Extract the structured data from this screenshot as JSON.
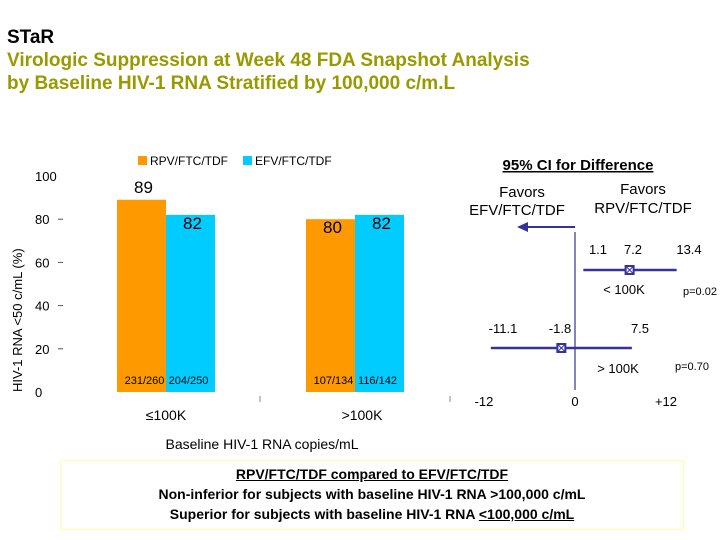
{
  "header": {
    "study": "STaR",
    "title_line2": "Virologic Suppression at Week 48 FDA Snapshot Analysis",
    "title_line3": "by Baseline HIV-1 RNA Stratified by 100,000 c/m.L"
  },
  "colors": {
    "rpv": "#FF9900",
    "efv": "#00CCFF",
    "ci": "#333399",
    "title_accent": "#999900"
  },
  "chart_data": [
    {
      "type": "bar",
      "title": "",
      "xlabel": "Baseline HIV-1 RNA copies/mL",
      "ylabel": "HIV-1 RNA <50 c/mL (%)",
      "ylim": [
        0,
        100
      ],
      "yticks": [
        "0",
        "20",
        "40",
        "60",
        "80",
        "100"
      ],
      "categories": [
        "≤100K",
        ">100K"
      ],
      "legend": [
        "RPV/FTC/TDF",
        "EFV/FTC/TDF"
      ],
      "series": [
        {
          "name": "RPV/FTC/TDF",
          "values": [
            89,
            80
          ],
          "n_labels": [
            "231/260",
            "107/134"
          ]
        },
        {
          "name": "EFV/FTC/TDF",
          "values": [
            82,
            82
          ],
          "n_labels": [
            "204/250",
            "116/142"
          ]
        }
      ]
    },
    {
      "type": "forest",
      "title": "95% CI for Difference",
      "favors_left": [
        "Favors",
        "EFV/FTC/TDF"
      ],
      "favors_right": [
        "Favors",
        "RPV/FTC/TDF"
      ],
      "xlim": [
        -12,
        12
      ],
      "xticks": [
        "-12",
        "0",
        "+12"
      ],
      "rows": [
        {
          "label": "< 100K",
          "lower": 1.1,
          "point": 7.2,
          "upper": 13.4,
          "lower_label": "1.1",
          "point_label": "7.2",
          "upper_label": "13.4",
          "p": "p=0.02"
        },
        {
          "label": "> 100K",
          "lower": -11.1,
          "point": -1.8,
          "upper": 7.5,
          "lower_label": "-11.1",
          "point_label": "-1.8",
          "upper_label": "7.5",
          "p": "p=0.70"
        }
      ]
    }
  ],
  "conclusion": {
    "line1": "RPV/FTC/TDF compared to EFV/FTC/TDF",
    "line2": "Non-inferior for subjects with baseline HIV-1 RNA >100,000 c/mL",
    "line3_prefix": "Superior for subjects with baseline HIV-1 RNA ",
    "line3_value": "<100,000 c/mL"
  }
}
